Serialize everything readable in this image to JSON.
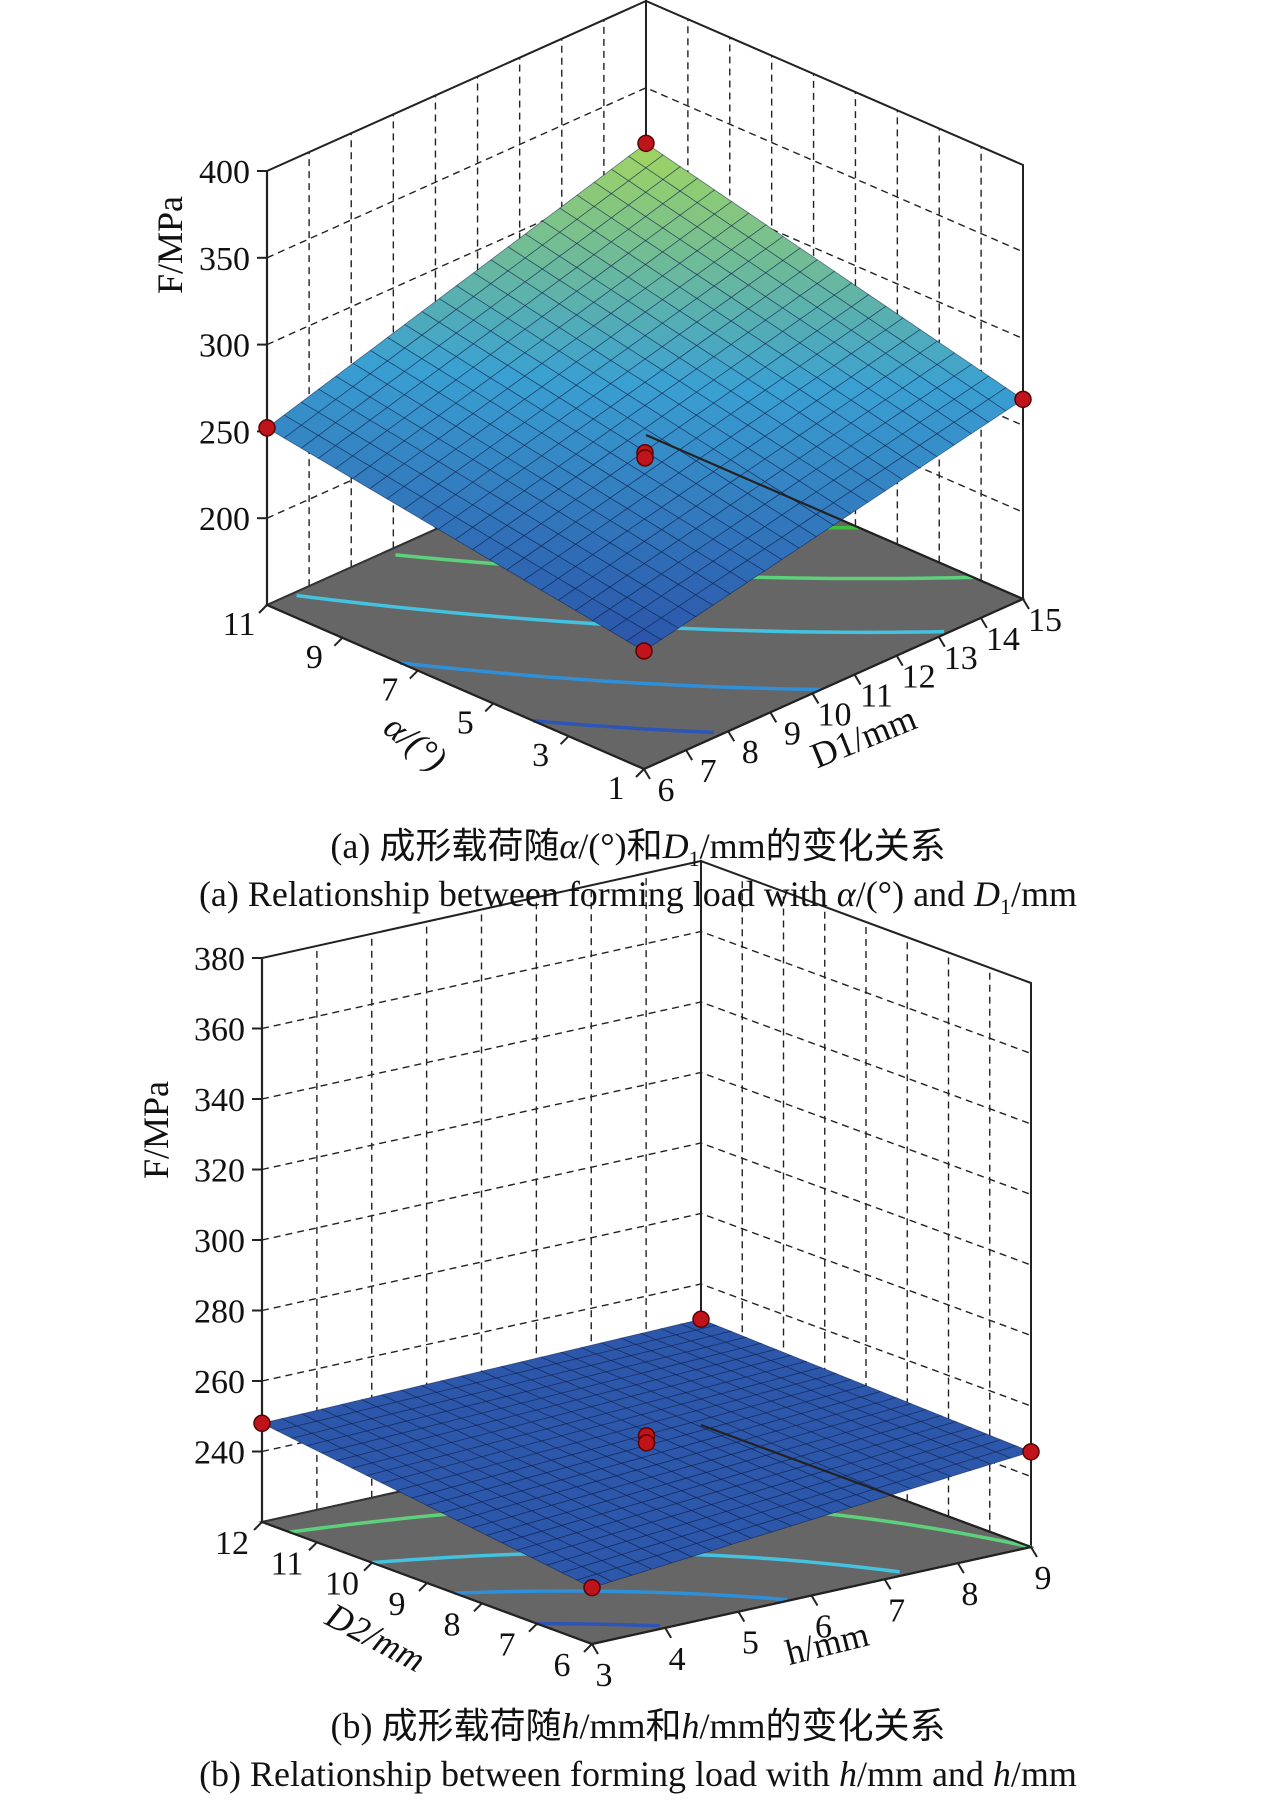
{
  "colors": {
    "floor": "#666666",
    "grid": "#222222",
    "surface_low": "#2a4fa6",
    "surface_high": "#a7d85a",
    "point": "#c0141c",
    "contour_palette": [
      "#2d55b8",
      "#2f8fd8",
      "#44c3e0",
      "#5cd07a",
      "#3fbf3f"
    ]
  },
  "chart_data": [
    {
      "panel": "a",
      "type": "surface",
      "zlabel": "F/MPa",
      "z_ticks": [
        "400",
        "350",
        "300",
        "250",
        "200"
      ],
      "zlim": [
        150,
        400
      ],
      "xlabel": "D1/mm",
      "x_ticks": [
        "6",
        "7",
        "8",
        "9",
        "10",
        "11",
        "12",
        "13",
        "14",
        "15"
      ],
      "xlim": [
        6,
        15
      ],
      "ylabel": "α/(°)",
      "y_ticks": [
        "1",
        "3",
        "5",
        "7",
        "9",
        "11"
      ],
      "ylim": [
        1,
        11
      ],
      "corner_values": {
        "x_min_y_min": 218,
        "x_max_y_min": 265,
        "x_min_y_max": 252,
        "x_max_y_max": 318
      },
      "design_points": [
        {
          "x": 6,
          "y": 1,
          "z": 218
        },
        {
          "x": 6,
          "y": 11,
          "z": 252
        },
        {
          "x": 15,
          "y": 11,
          "z": 318
        },
        {
          "x": 15,
          "y": 1,
          "z": 265
        },
        {
          "x": 10.5,
          "y": 6,
          "z": 236
        },
        {
          "x": 10.5,
          "y": 6,
          "z": 233
        }
      ],
      "grid": true
    },
    {
      "panel": "b",
      "type": "surface",
      "zlabel": "F/MPa",
      "z_ticks": [
        "380",
        "360",
        "340",
        "320",
        "300",
        "280",
        "260",
        "240"
      ],
      "zlim": [
        220,
        380
      ],
      "xlabel": "h/mm",
      "x_ticks": [
        "3",
        "4",
        "5",
        "6",
        "7",
        "8",
        "9"
      ],
      "xlim": [
        3,
        9
      ],
      "ylabel": "D2/mm",
      "y_ticks": [
        "6",
        "7",
        "8",
        "9",
        "10",
        "11",
        "12"
      ],
      "ylim": [
        6,
        12
      ],
      "corner_values": {
        "x_min_y_min": 236,
        "x_max_y_min": 247,
        "x_min_y_max": 248,
        "x_max_y_max": 250
      },
      "design_points": [
        {
          "x": 3,
          "y": 6,
          "z": 236
        },
        {
          "x": 3,
          "y": 12,
          "z": 248
        },
        {
          "x": 9,
          "y": 12,
          "z": 250
        },
        {
          "x": 9,
          "y": 6,
          "z": 247
        },
        {
          "x": 6,
          "y": 9,
          "z": 248
        },
        {
          "x": 6,
          "y": 9,
          "z": 246
        }
      ],
      "grid": true
    }
  ],
  "captions": {
    "a_cn_pre": "(a) 成形载荷随",
    "a_cn_alpha": "α",
    "a_cn_mid": "/(°)和",
    "a_cn_D": "D",
    "a_cn_sub": "1",
    "a_cn_post": "/mm的变化关系",
    "a_en_pre": "(a) Relationship between forming load with ",
    "a_en_alpha": "α",
    "a_en_mid": "/(°) and ",
    "a_en_D": "D",
    "a_en_sub": "1",
    "a_en_post": "/mm",
    "b_cn_pre": "(b) 成形载荷随",
    "b_cn_h1": "h",
    "b_cn_mid": "/mm和",
    "b_cn_h2": "h",
    "b_cn_post": "/mm的变化关系",
    "b_en_pre": "(b) Relationship between forming load with ",
    "b_en_h1": "h",
    "b_en_mid": "/mm and ",
    "b_en_h2": "h",
    "b_en_post": "/mm"
  }
}
